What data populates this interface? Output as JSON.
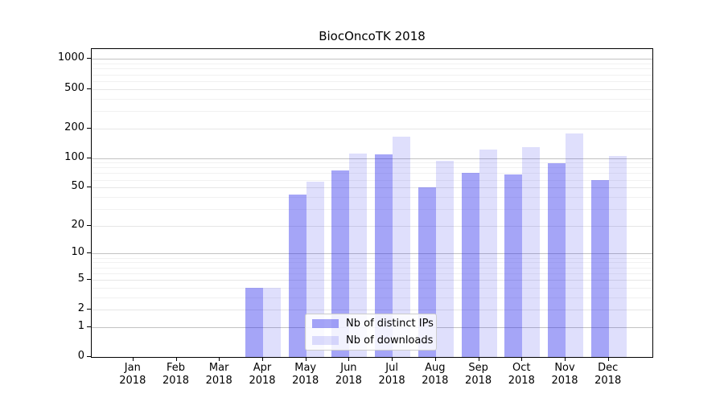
{
  "title": "BiocOncoTK 2018",
  "chart_data": {
    "type": "bar",
    "title": "BiocOncoTK 2018",
    "categories": [
      "Jan",
      "Feb",
      "Mar",
      "Apr",
      "May",
      "Jun",
      "Jul",
      "Aug",
      "Sep",
      "Oct",
      "Nov",
      "Dec"
    ],
    "x_year": "2018",
    "series": [
      {
        "name": "Nb of distinct IPs",
        "color": "rgba(40,40,235,0.42)",
        "values": [
          0,
          0,
          0,
          4,
          42,
          74,
          108,
          50,
          71,
          68,
          88,
          59
        ]
      },
      {
        "name": "Nb of downloads",
        "color": "rgba(40,40,235,0.15)",
        "values": [
          0,
          0,
          0,
          4,
          57,
          111,
          165,
          93,
          122,
          130,
          176,
          104
        ]
      }
    ],
    "yscale": "log1p",
    "yticks": [
      0,
      1,
      2,
      5,
      10,
      20,
      50,
      100,
      200,
      500,
      1000
    ],
    "minor_yticks": [
      3,
      4,
      6,
      7,
      8,
      9,
      30,
      40,
      60,
      70,
      80,
      90,
      300,
      400,
      600,
      700,
      800,
      900
    ],
    "ylim": [
      0,
      1320
    ],
    "xlabel": "",
    "ylabel": "",
    "grid": true,
    "legend_position": "lower-center",
    "grid_major_color": "#c2c2c2",
    "grid_mid_color": "#e6e6e6",
    "grid_minor_color": "#f1f1f1"
  },
  "legend": {
    "items": [
      {
        "label": "Nb of distinct IPs"
      },
      {
        "label": "Nb of downloads"
      }
    ]
  }
}
